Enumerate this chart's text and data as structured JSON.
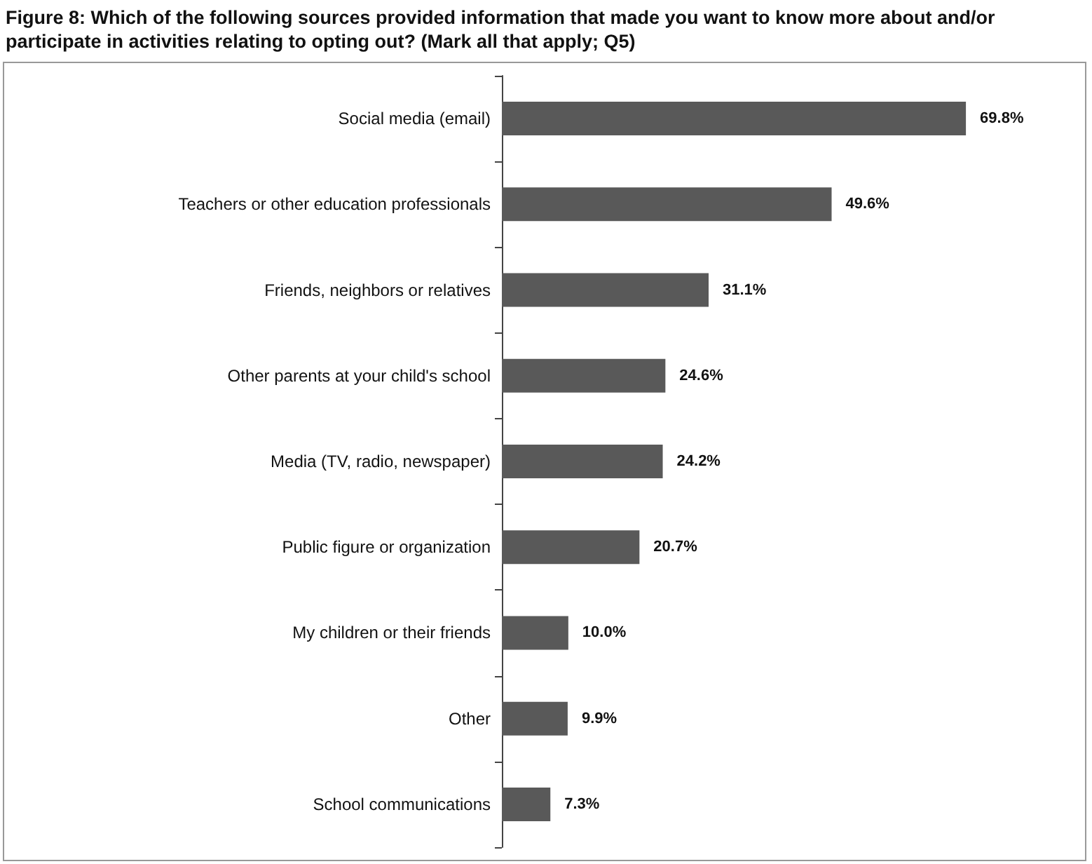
{
  "chart_data": {
    "type": "bar",
    "orientation": "horizontal",
    "title": "Figure 8: Which of the following sources provided information that made you want to know more about and/or participate in activities relating to opting out? (Mark all that apply; Q5)",
    "categories": [
      "Social media (email)",
      "Teachers or other education professionals",
      "Friends, neighbors or relatives",
      "Other parents at your child's school",
      "Media (TV, radio, newspaper)",
      "Public figure or organization",
      "My children or their friends",
      "Other",
      "School communications"
    ],
    "values": [
      69.8,
      49.6,
      31.1,
      24.6,
      24.2,
      20.7,
      10.0,
      9.9,
      7.3
    ],
    "value_labels": [
      "69.8%",
      "49.6%",
      "31.1%",
      "24.6%",
      "24.2%",
      "20.7%",
      "10.0%",
      "9.9%",
      "7.3%"
    ],
    "color": "#595959"
  }
}
